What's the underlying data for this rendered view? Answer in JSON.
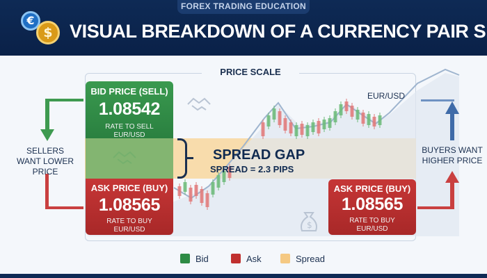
{
  "header": {
    "tag": "FOREX TRADING EDUCATION",
    "title": "VISUAL BREAKDOWN OF A CURRENCY PAIR SPREAD",
    "icons": [
      "euro-coin-icon",
      "dollar-coin-icon"
    ],
    "euro_symbol": "€",
    "dollar_symbol": "$"
  },
  "chart": {
    "scale_label": "PRICE SCALE",
    "pair_label": "EUR/USD"
  },
  "bid_box": {
    "label": "BID PRICE (SELL)",
    "price": "1.08542",
    "caption": "RATE TO SELL EUR/USD"
  },
  "ask_box_left": {
    "label": "ASK PRICE (BUY)",
    "price": "1.08565",
    "caption": "RATE TO BUY EUR/USD"
  },
  "ask_box_right": {
    "label": "ASK PRICE (BUY)",
    "price": "1.08565",
    "caption": "RATE TO BUY EUR/USD"
  },
  "spread": {
    "title": "SPREAD GAP",
    "subtitle": "SPREAD = 2.3 PIPS"
  },
  "sides": {
    "left": "SELLERS WANT LOWER PRICE",
    "right": "BUYERS WANT HIGHER PRICE"
  },
  "legend": [
    {
      "label": "Bid",
      "color": "#2e8b45"
    },
    {
      "label": "Ask",
      "color": "#c0302f"
    },
    {
      "label": "Spread",
      "color": "#f5c983"
    }
  ],
  "colors": {
    "header_bg": "#0e2a55",
    "bid": "#2e8b45",
    "ask": "#c0302f",
    "spread": "#f5c983",
    "text_dark": "#1a2f4f"
  }
}
